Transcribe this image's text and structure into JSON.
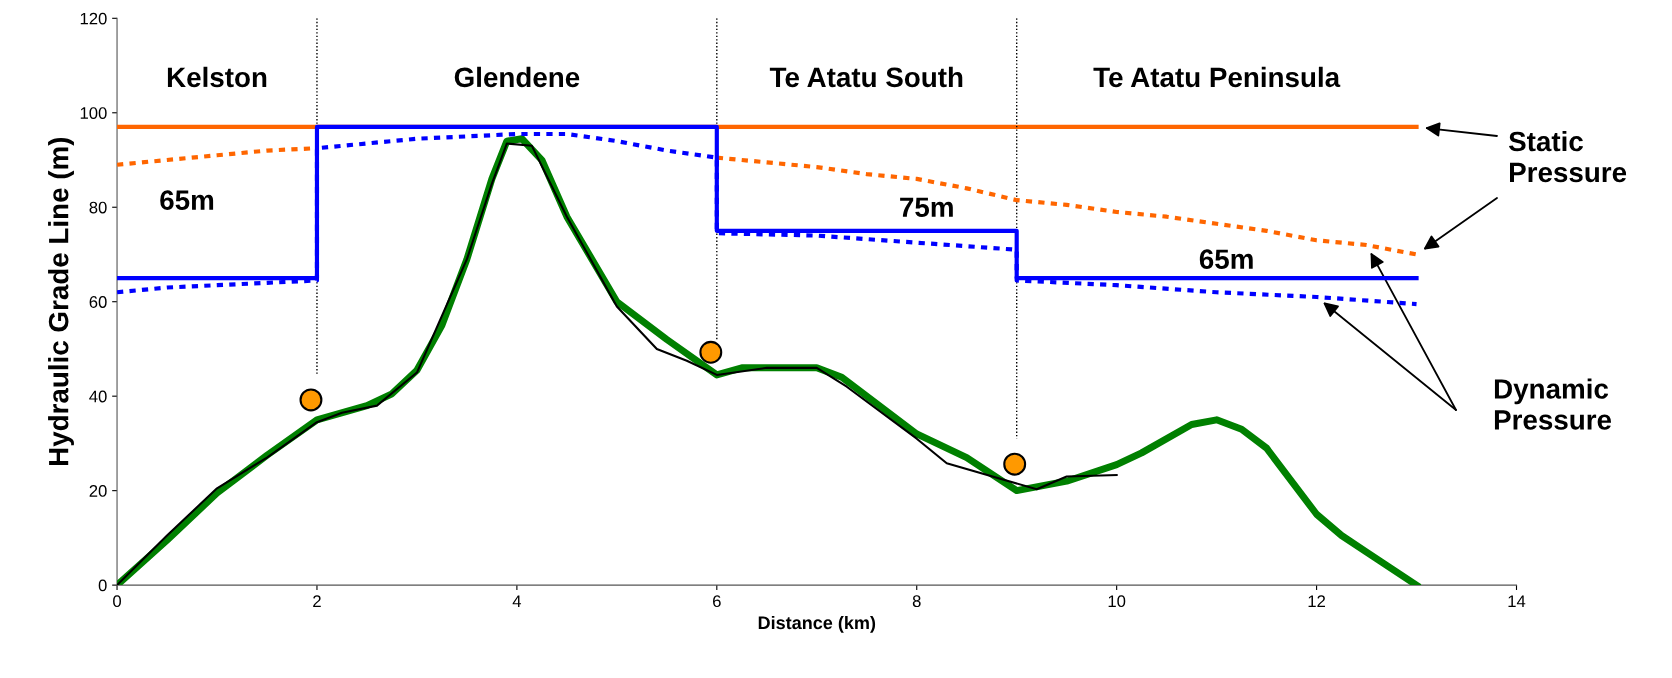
{
  "chart_data": {
    "type": "line",
    "xlabel": "Distance (km)",
    "ylabel": "Hydraulic Grade Line (m)",
    "xlim": [
      0,
      14
    ],
    "xticks": [
      0,
      2,
      4,
      6,
      8,
      10,
      12,
      14
    ],
    "ylim": [
      0,
      120
    ],
    "yticks": [
      0,
      20,
      40,
      60,
      80,
      100,
      120
    ],
    "grid": false,
    "legend": false,
    "marker": "none",
    "series": [
      {
        "color": "#ff6600",
        "line_style": "solid",
        "x": [
          0,
          13
        ],
        "values": [
          97,
          97
        ]
      },
      {
        "color": "#0000ff",
        "line_style": "solid",
        "x": [
          0,
          2,
          2,
          6,
          6,
          9,
          9,
          13
        ],
        "values": [
          65,
          65,
          97,
          97,
          75,
          75,
          65,
          65
        ]
      },
      {
        "color": "#ff6600",
        "line_style": "dashed",
        "x": [
          0,
          0.5,
          1,
          1.5,
          2,
          4,
          6,
          6.5,
          7,
          7.5,
          8,
          8.5,
          9,
          9.5,
          10,
          10.5,
          11,
          11.5,
          12,
          12.5,
          13
        ],
        "values": [
          89,
          90,
          91,
          92,
          92.5,
          null,
          90.5,
          89.5,
          88.5,
          87,
          86,
          84,
          81.5,
          80.5,
          79,
          78,
          76.5,
          75,
          73,
          72,
          70
        ]
      },
      {
        "color": "#0000ff",
        "line_style": "dashed",
        "x": [
          0,
          0.5,
          1,
          1.5,
          2,
          2,
          3,
          4,
          4.5,
          5,
          5.5,
          6,
          6,
          7,
          8,
          9,
          9,
          10,
          11,
          12,
          13
        ],
        "values": [
          62,
          63,
          63.5,
          64,
          64.5,
          92.5,
          94.5,
          95.5,
          95.5,
          94,
          92,
          90.5,
          74.5,
          74,
          72.5,
          71,
          64.5,
          63.5,
          62,
          61,
          59.5
        ]
      },
      {
        "color": "#008000",
        "line_style": "solid",
        "x": [
          0,
          0.5,
          1,
          1.5,
          2,
          2.5,
          2.75,
          3,
          3.25,
          3.5,
          3.75,
          3.9,
          4.05,
          4.25,
          4.5,
          5,
          5.5,
          6,
          6.25,
          6.5,
          7,
          7.25,
          8,
          8.5,
          9,
          9.5,
          10,
          10.25,
          10.75,
          11,
          11.25,
          11.5,
          12,
          12.25,
          12.5,
          13
        ],
        "values": [
          0,
          9.5,
          19.5,
          27.5,
          35,
          38,
          40.5,
          45.5,
          55,
          69,
          86,
          94,
          94.5,
          90,
          78,
          60,
          52,
          44.5,
          46,
          46,
          46,
          44,
          32,
          27,
          20,
          22,
          25.5,
          28,
          34,
          35,
          33,
          29,
          15,
          10.5,
          7,
          0
        ]
      },
      {
        "color": "#000000",
        "line_style": "solid",
        "x": [
          0,
          0.5,
          1,
          1.5,
          2,
          2.25,
          2.6,
          3,
          3.5,
          3.75,
          3.9,
          4.15,
          4.5,
          5,
          5.4,
          5.7,
          6,
          6.5,
          7,
          7.3,
          8,
          8.3,
          9.2,
          9.5,
          10
        ],
        "values": [
          0,
          10.5,
          20.5,
          27,
          34.5,
          36.5,
          38,
          45,
          69,
          85,
          93.5,
          93,
          78,
          59,
          50,
          47.5,
          44.5,
          46,
          46,
          42,
          31,
          25.8,
          20.3,
          23,
          23.3
        ]
      },
      {
        "color": "#000000",
        "line_style": "dotted",
        "x": [
          2,
          2
        ],
        "values": [
          120,
          44.5
        ]
      },
      {
        "color": "#000000",
        "line_style": "dotted",
        "x": [
          6,
          6
        ],
        "values": [
          120,
          52
        ]
      },
      {
        "color": "#000000",
        "line_style": "dotted",
        "x": [
          9,
          9
        ],
        "values": [
          120,
          31
        ]
      },
      {
        "type": "scatter",
        "marker": "circle",
        "color": "#ff9900",
        "x": [
          1.94,
          5.94,
          8.98
        ],
        "values": [
          39.2,
          49.3,
          25.6
        ]
      }
    ],
    "annotations": [
      "Kelston",
      "Glendene",
      "Te Atatu South",
      "Te Atatu Peninsula",
      "65m",
      "75m",
      "65m",
      "Static\nPressure",
      "Dynamic\nPressure"
    ]
  }
}
